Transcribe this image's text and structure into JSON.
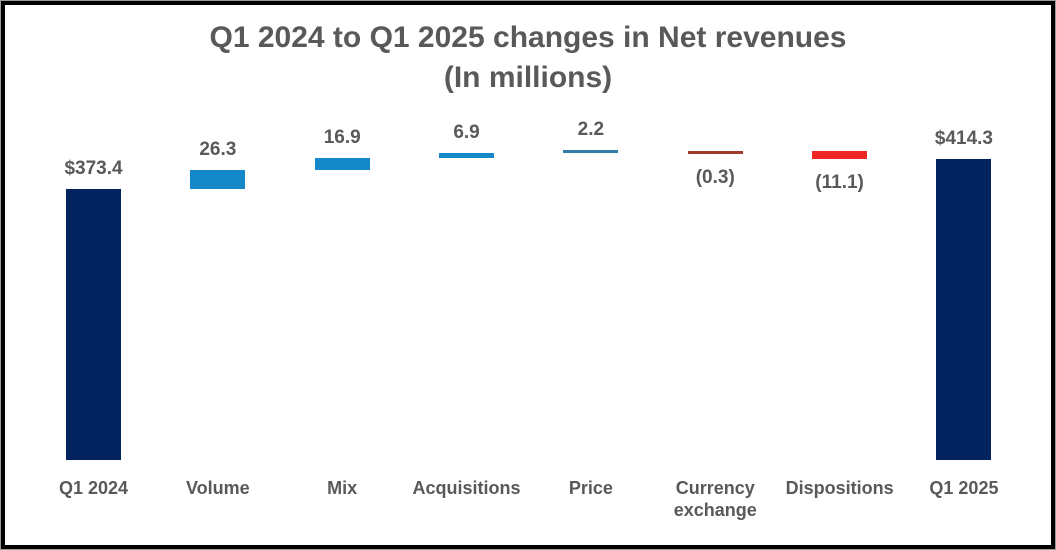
{
  "title": {
    "line1": "Q1 2024 to Q1 2025 changes in Net revenues",
    "line2": "(In millions)"
  },
  "palette": {
    "navy": "#03235e",
    "blue": "#1588ca",
    "price_blue": "#2e7ca8",
    "dark_red": "#a33b2a",
    "red": "#ee2724",
    "text_gray": "#595959",
    "border_black": "#000000",
    "border_gray": "#9a9a9a",
    "background": "#ffffff"
  },
  "chart_data": {
    "type": "bar",
    "subtype": "waterfall",
    "title": "Q1 2024 to Q1 2025 changes in Net revenues",
    "subtitle": "(In millions)",
    "unit": "USD millions",
    "grid": false,
    "legend": false,
    "categories": [
      "Q1 2024",
      "Volume",
      "Mix",
      "Acquisitions",
      "Price",
      "Currency exchange",
      "Dispositions",
      "Q1 2025"
    ],
    "values": [
      373.4,
      26.3,
      16.9,
      6.9,
      2.2,
      -0.3,
      -11.1,
      414.3
    ],
    "items": [
      {
        "label": "Q1 2024",
        "value": 373.4,
        "display": "$373.4",
        "kind": "total",
        "color": "navy",
        "label_position": "above"
      },
      {
        "label": "Volume",
        "value": 26.3,
        "display": "26.3",
        "kind": "delta",
        "color": "blue",
        "label_position": "above"
      },
      {
        "label": "Mix",
        "value": 16.9,
        "display": "16.9",
        "kind": "delta",
        "color": "blue",
        "label_position": "above"
      },
      {
        "label": "Acquisitions",
        "value": 6.9,
        "display": "6.9",
        "kind": "delta",
        "color": "blue",
        "label_position": "above"
      },
      {
        "label": "Price",
        "value": 2.2,
        "display": "2.2",
        "kind": "delta",
        "color": "price_blue",
        "label_position": "above"
      },
      {
        "label": "Currency exchange",
        "value": -0.3,
        "display": "(0.3)",
        "kind": "delta",
        "color": "dark_red",
        "label_position": "below"
      },
      {
        "label": "Dispositions",
        "value": -11.1,
        "display": "(11.1)",
        "kind": "delta",
        "color": "red",
        "label_position": "below"
      },
      {
        "label": "Q1 2025",
        "value": 414.3,
        "display": "$414.3",
        "kind": "total",
        "color": "navy",
        "label_position": "above"
      }
    ]
  }
}
